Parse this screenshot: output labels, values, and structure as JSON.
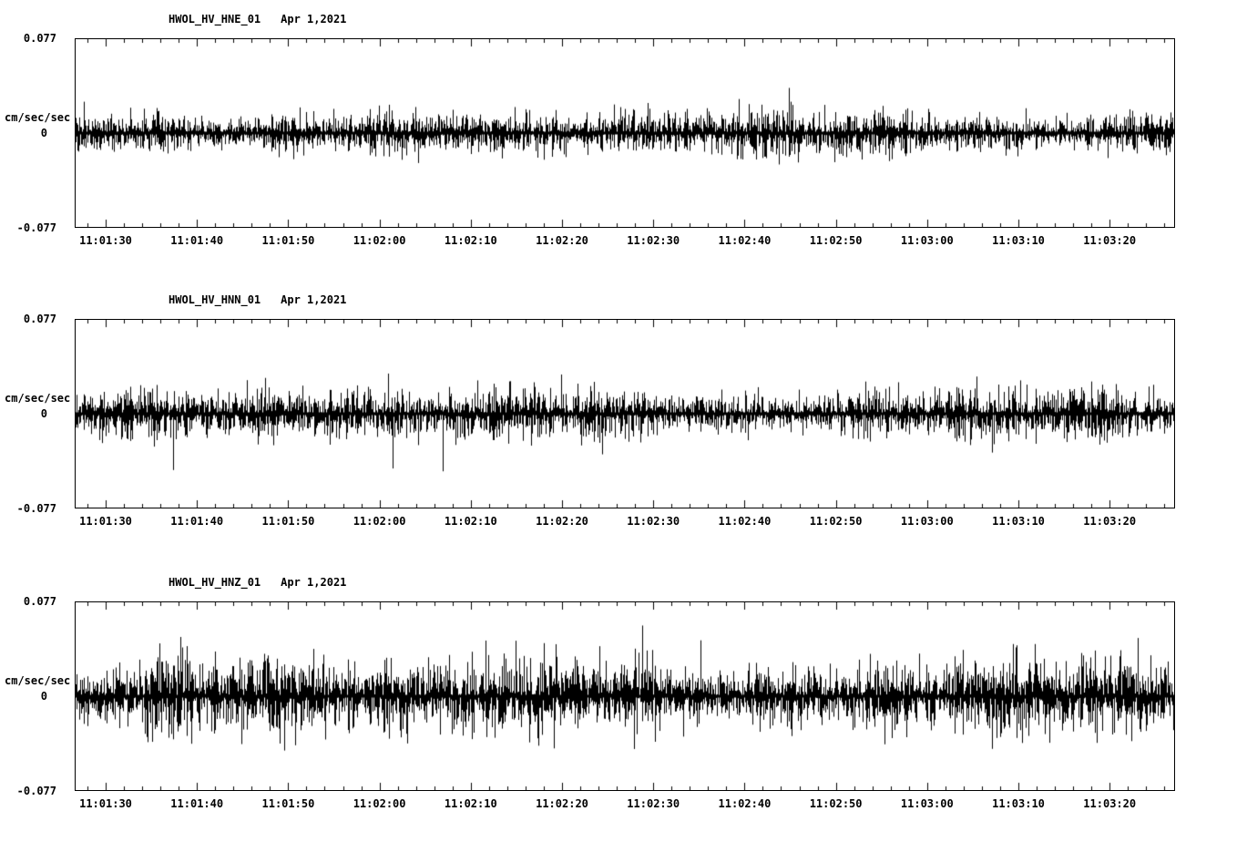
{
  "page": {
    "background": "#ffffff",
    "trace_color": "#000000",
    "description": "Three-component strong-motion seismogram display, station HWOL (HV network), channels HNE / HNN / HNZ, continuous ambient noise traces"
  },
  "chart_data": [
    {
      "type": "line",
      "title": "HWOL_HV_HNE_01",
      "date_label": "Apr 1,2021",
      "ylabel": "cm/sec/sec",
      "ylim": [
        -0.077,
        0.077
      ],
      "ytick_labels": {
        "top": "0.077",
        "mid": "0",
        "bottom": "-0.077"
      },
      "x_tick_labels": [
        "11:01:30",
        "11:01:40",
        "11:01:50",
        "11:02:00",
        "11:02:10",
        "11:02:20",
        "11:02:30",
        "11:02:40",
        "11:02:50",
        "11:03:00",
        "11:03:10",
        "11:03:20"
      ],
      "x_range": [
        "11:01:26",
        "11:03:27"
      ],
      "x_major_interval_sec": 10,
      "x_minor_interval_sec": 2,
      "signal": "continuous broadband seismic noise, zero-mean",
      "typical_amplitude_cm_s2": 0.01,
      "peak_amplitude_cm_s2": 0.055,
      "grid": false,
      "legend": "none",
      "seed": 11
    },
    {
      "type": "line",
      "title": "HWOL_HV_HNN_01",
      "date_label": "Apr 1,2021",
      "ylabel": "cm/sec/sec",
      "ylim": [
        -0.077,
        0.077
      ],
      "ytick_labels": {
        "top": "0.077",
        "mid": "0",
        "bottom": "-0.077"
      },
      "x_tick_labels": [
        "11:01:30",
        "11:01:40",
        "11:01:50",
        "11:02:00",
        "11:02:10",
        "11:02:20",
        "11:02:30",
        "11:02:40",
        "11:02:50",
        "11:03:00",
        "11:03:10",
        "11:03:20"
      ],
      "x_range": [
        "11:01:26",
        "11:03:27"
      ],
      "x_major_interval_sec": 10,
      "x_minor_interval_sec": 2,
      "signal": "continuous broadband seismic noise, zero-mean",
      "typical_amplitude_cm_s2": 0.011,
      "peak_amplitude_cm_s2": 0.055,
      "grid": false,
      "legend": "none",
      "seed": 22
    },
    {
      "type": "line",
      "title": "HWOL_HV_HNZ_01",
      "date_label": "Apr 1,2021",
      "ylabel": "cm/sec/sec",
      "ylim": [
        -0.077,
        0.077
      ],
      "ytick_labels": {
        "top": "0.077",
        "mid": "0",
        "bottom": "-0.077"
      },
      "x_tick_labels": [
        "11:01:30",
        "11:01:40",
        "11:01:50",
        "11:02:00",
        "11:02:10",
        "11:02:20",
        "11:02:30",
        "11:02:40",
        "11:02:50",
        "11:03:00",
        "11:03:10",
        "11:03:20"
      ],
      "x_range": [
        "11:01:26",
        "11:03:27"
      ],
      "x_major_interval_sec": 10,
      "x_minor_interval_sec": 2,
      "signal": "continuous broadband seismic noise, zero-mean, higher amplitude than horizontal components",
      "typical_amplitude_cm_s2": 0.017,
      "peak_amplitude_cm_s2": 0.072,
      "grid": false,
      "legend": "none",
      "seed": 33
    }
  ]
}
